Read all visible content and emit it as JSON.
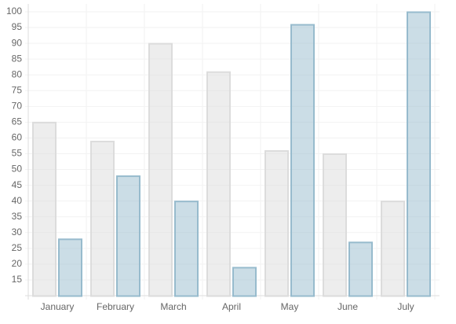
{
  "chart_data": {
    "type": "bar",
    "categories": [
      "January",
      "February",
      "March",
      "April",
      "May",
      "June",
      "July"
    ],
    "series": [
      {
        "color": "#dcdcdc",
        "values": [
          65,
          59,
          90,
          81,
          56,
          55,
          40
        ]
      },
      {
        "color": "#97bbcd",
        "values": [
          28,
          48,
          40,
          19,
          96,
          27,
          100
        ]
      }
    ],
    "ylim": [
      10,
      100
    ],
    "yticks": [
      15,
      20,
      25,
      30,
      35,
      40,
      45,
      50,
      55,
      60,
      65,
      70,
      75,
      80,
      85,
      90,
      95,
      100
    ],
    "grid": true
  }
}
